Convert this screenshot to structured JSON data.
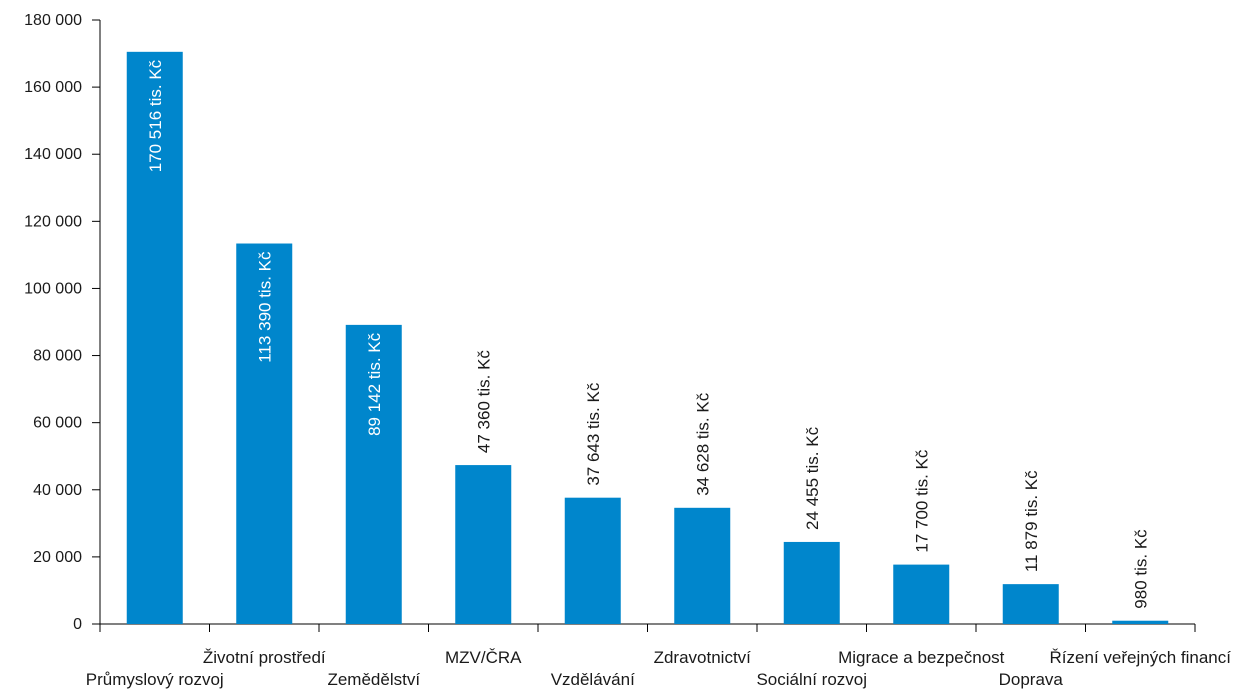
{
  "chart_data": {
    "type": "bar",
    "title": "",
    "xlabel": "",
    "ylabel": "",
    "ylim": [
      0,
      180000
    ],
    "yticks": [
      0,
      20000,
      40000,
      60000,
      80000,
      100000,
      120000,
      140000,
      160000,
      180000
    ],
    "ytick_labels": [
      "0",
      "20 000",
      "40 000",
      "60 000",
      "80 000",
      "100 000",
      "120 000",
      "140 000",
      "160 000",
      "180 000"
    ],
    "grid": false,
    "legend": "none",
    "bar_color": "#0086CC",
    "categories": [
      "Průmyslový rozvoj",
      "Životní prostředí",
      "Zemědělství",
      "MZV/ČRA",
      "Vzdělávání",
      "Zdravotnictví",
      "Sociální rozvoj",
      "Migrace a bezpečnost",
      "Doprava",
      "Řízení veřejných financí"
    ],
    "values": [
      170516,
      113390,
      89142,
      47360,
      37643,
      34628,
      24455,
      17700,
      11879,
      980
    ],
    "data_labels": [
      "170 516 tis. Kč",
      "113 390 tis. Kč",
      "89 142 tis. Kč",
      "47 360 tis. Kč",
      "37 643 tis. Kč",
      "34 628 tis. Kč",
      "24 455 tis. Kč",
      "17 700 tis. Kč",
      "11 879 tis. Kč",
      "980 tis. Kč"
    ],
    "label_inside": [
      true,
      true,
      true,
      false,
      false,
      false,
      false,
      false,
      false,
      false
    ]
  }
}
